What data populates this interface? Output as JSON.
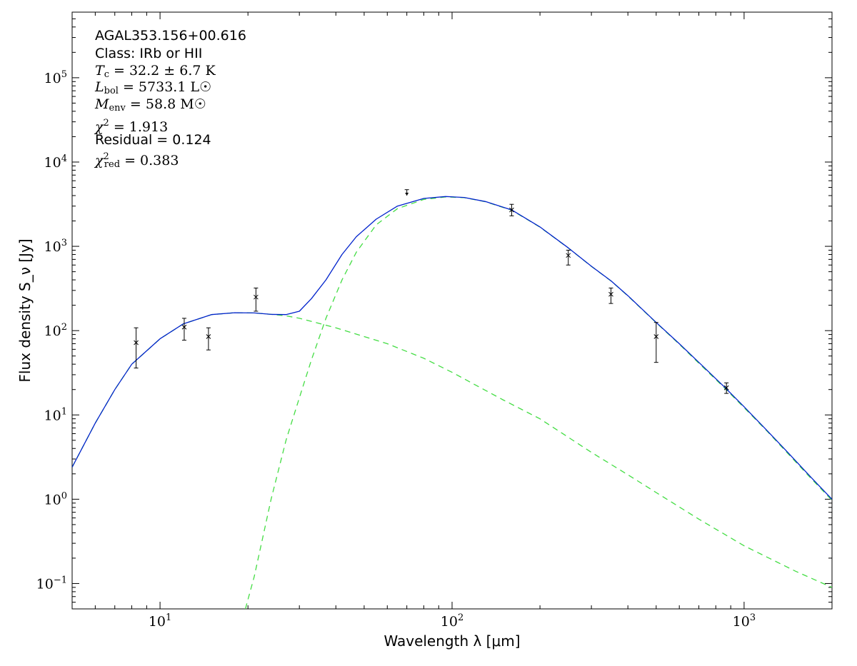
{
  "annotations": {
    "source_name": "AGAL353.156+00.616",
    "class_label": "Class: IRb or HII",
    "tc": {
      "symbol": "T",
      "sub": "c",
      "value": " = 32.2 ± 6.7 K"
    },
    "lbol": {
      "symbol": "L",
      "sub": "bol",
      "value": " = 5733.1 L☉"
    },
    "menv": {
      "symbol": "M",
      "sub": "env",
      "value": " = 58.8 M☉"
    },
    "chi2": {
      "symbol": "χ",
      "sup": "2",
      "value": " = 1.913"
    },
    "residual": "Residual = 0.124",
    "chi2_red": {
      "symbol": "χ",
      "sup": "2",
      "sub": "red",
      "value": " = 0.383"
    }
  },
  "chart_data": {
    "type": "scatter",
    "xscale": "log",
    "yscale": "log",
    "xlim": [
      5,
      2000
    ],
    "ylim": [
      0.05,
      600000
    ],
    "xlabel": "Wavelength λ [μm]",
    "ylabel": "Flux density S_ν [Jy]",
    "xticks": [
      {
        "value": 10,
        "base": "10",
        "exp": "1"
      },
      {
        "value": 100,
        "base": "10",
        "exp": "2"
      },
      {
        "value": 1000,
        "base": "10",
        "exp": "3"
      }
    ],
    "yticks": [
      {
        "value": 0.1,
        "base": "10",
        "exp": "−1"
      },
      {
        "value": 1,
        "base": "10",
        "exp": "0"
      },
      {
        "value": 10,
        "base": "10",
        "exp": "1"
      },
      {
        "value": 100,
        "base": "10",
        "exp": "2"
      },
      {
        "value": 1000,
        "base": "10",
        "exp": "3"
      },
      {
        "value": 10000,
        "base": "10",
        "exp": "4"
      },
      {
        "value": 100000,
        "base": "10",
        "exp": "5"
      }
    ],
    "measurements": [
      {
        "x": 8.28,
        "y": 72,
        "ylo": 36,
        "yhi": 108
      },
      {
        "x": 12.1,
        "y": 110,
        "ylo": 77,
        "yhi": 140
      },
      {
        "x": 14.65,
        "y": 85,
        "ylo": 59,
        "yhi": 108
      },
      {
        "x": 21.3,
        "y": 250,
        "ylo": 170,
        "yhi": 320
      },
      {
        "x": 160,
        "y": 2700,
        "ylo": 2300,
        "yhi": 3150
      },
      {
        "x": 250,
        "y": 780,
        "ylo": 600,
        "yhi": 900
      },
      {
        "x": 350,
        "y": 270,
        "ylo": 210,
        "yhi": 320
      },
      {
        "x": 500,
        "y": 85,
        "ylo": 42,
        "yhi": 125
      },
      {
        "x": 870,
        "y": 21,
        "ylo": 18,
        "yhi": 24
      }
    ],
    "upper_limits": [
      {
        "x": 70,
        "y": 4700,
        "arrow_to": 4000
      }
    ],
    "series": [
      {
        "style": "solid",
        "color": "#0022cc",
        "x": [
          5,
          6,
          7,
          8,
          10,
          12,
          15,
          18,
          21,
          24,
          27,
          30,
          33,
          37,
          42,
          47,
          55,
          65,
          80,
          95,
          110,
          130,
          160,
          200,
          250,
          300,
          350,
          400,
          500,
          600,
          700,
          850,
          1000,
          1200,
          1400,
          1700,
          2000
        ],
        "y": [
          2.4,
          8,
          20,
          40,
          80,
          120,
          155,
          163,
          162,
          156,
          155,
          170,
          240,
          400,
          800,
          1300,
          2100,
          3000,
          3700,
          3900,
          3800,
          3400,
          2700,
          1700,
          960,
          580,
          390,
          260,
          125,
          70,
          42,
          22,
          12.5,
          6.5,
          3.7,
          1.8,
          1.0
        ]
      },
      {
        "style": "dashed",
        "color": "#44dd44",
        "x": [
          5,
          6,
          7,
          8,
          10,
          12,
          15,
          18,
          21,
          24,
          27,
          30,
          35,
          40,
          50,
          60,
          80,
          100,
          150,
          200,
          300,
          400,
          500,
          700,
          1000,
          1500,
          2000
        ],
        "y": [
          2.4,
          8,
          20,
          40,
          80,
          120,
          155,
          163,
          162,
          156,
          150,
          140,
          122,
          108,
          85,
          70,
          47,
          32,
          15,
          9,
          3.6,
          1.95,
          1.2,
          0.58,
          0.28,
          0.14,
          0.09
        ]
      },
      {
        "style": "dashed",
        "color": "#44dd44",
        "x": [
          19.6,
          21,
          24,
          27,
          30,
          33,
          37,
          42,
          47,
          55,
          65,
          80,
          95,
          110,
          130,
          160,
          200,
          250,
          300,
          350,
          400,
          500,
          600,
          700,
          850,
          1000,
          1200,
          1400,
          1700,
          2000
        ],
        "y": [
          0.05,
          0.12,
          1.0,
          5,
          16,
          45,
          140,
          400,
          850,
          1800,
          2800,
          3600,
          3850,
          3780,
          3380,
          2680,
          1690,
          955,
          578,
          388,
          258,
          124,
          69,
          41,
          21.5,
          12.2,
          6.4,
          3.6,
          1.75,
          0.97
        ]
      }
    ]
  }
}
